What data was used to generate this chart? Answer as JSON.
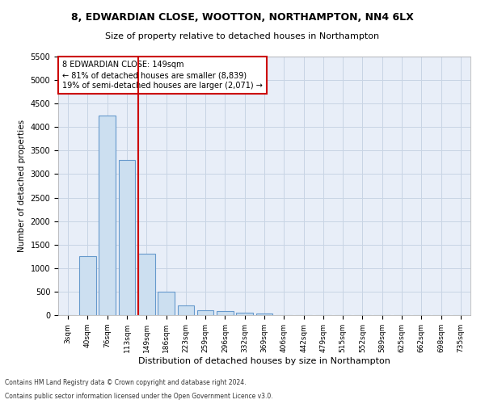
{
  "title": "8, EDWARDIAN CLOSE, WOOTTON, NORTHAMPTON, NN4 6LX",
  "subtitle": "Size of property relative to detached houses in Northampton",
  "xlabel": "Distribution of detached houses by size in Northampton",
  "ylabel": "Number of detached properties",
  "footnote1": "Contains HM Land Registry data © Crown copyright and database right 2024.",
  "footnote2": "Contains public sector information licensed under the Open Government Licence v3.0.",
  "annotation_line1": "8 EDWARDIAN CLOSE: 149sqm",
  "annotation_line2": "← 81% of detached houses are smaller (8,839)",
  "annotation_line3": "19% of semi-detached houses are larger (2,071) →",
  "property_size_bin": 4,
  "categories": [
    "3sqm",
    "40sqm",
    "76sqm",
    "113sqm",
    "149sqm",
    "186sqm",
    "223sqm",
    "259sqm",
    "296sqm",
    "332sqm",
    "369sqm",
    "406sqm",
    "442sqm",
    "479sqm",
    "515sqm",
    "552sqm",
    "589sqm",
    "625sqm",
    "662sqm",
    "698sqm",
    "735sqm"
  ],
  "values": [
    0,
    1250,
    4250,
    3300,
    1300,
    500,
    200,
    100,
    80,
    50,
    40,
    0,
    0,
    0,
    0,
    0,
    0,
    0,
    0,
    0,
    0
  ],
  "bar_color": "#ccdff0",
  "bar_edge_color": "#6699cc",
  "red_line_color": "#cc0000",
  "box_edge_color": "#cc0000",
  "grid_color": "#c8d4e4",
  "bg_color": "#e8eef8",
  "ylim_max": 5500,
  "ytick_step": 500
}
